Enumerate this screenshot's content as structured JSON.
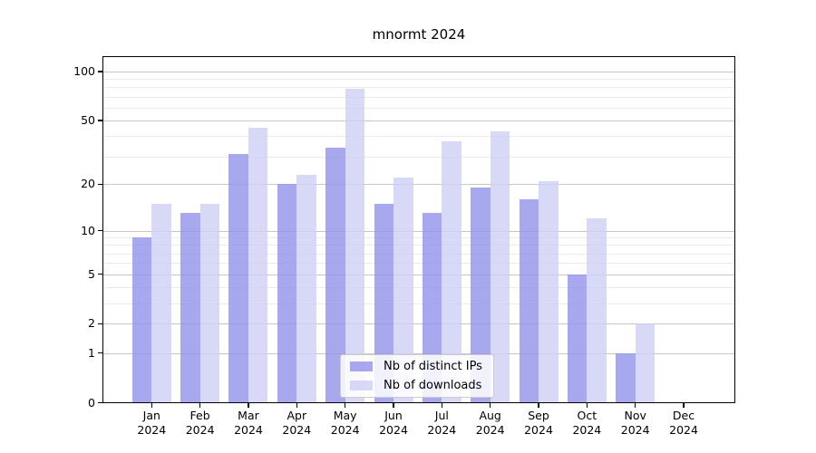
{
  "chart_data": {
    "type": "bar",
    "title": "mnormt 2024",
    "categories": [
      "Jan 2024",
      "Feb 2024",
      "Mar 2024",
      "Apr 2024",
      "May 2024",
      "Jun 2024",
      "Jul 2024",
      "Aug 2024",
      "Sep 2024",
      "Oct 2024",
      "Nov 2024",
      "Dec 2024"
    ],
    "series": [
      {
        "name": "Nb of distinct IPs",
        "color": "#9292ea",
        "values": [
          9,
          13,
          31,
          20,
          34,
          15,
          13,
          19,
          16,
          5,
          1,
          0
        ]
      },
      {
        "name": "Nb of downloads",
        "color": "#cecef5",
        "values": [
          15,
          15,
          45,
          23,
          78,
          22,
          37,
          43,
          21,
          12,
          2,
          0
        ]
      }
    ],
    "xlabel": "",
    "ylabel": "",
    "yscale": "log1p",
    "ylim": [
      0,
      125
    ],
    "yticks": [
      0,
      1,
      2,
      5,
      10,
      20,
      50,
      100
    ],
    "yticks_minor": [
      3,
      4,
      6,
      7,
      8,
      9,
      30,
      40,
      60,
      70,
      80,
      90
    ],
    "grid": true,
    "legend_position": "lower center"
  },
  "colors": {
    "grid_major": "#c6c6c6",
    "grid_minor": "#ebebeb",
    "axis": "#000000",
    "background": "#ffffff",
    "legend_border": "#cccccc"
  }
}
